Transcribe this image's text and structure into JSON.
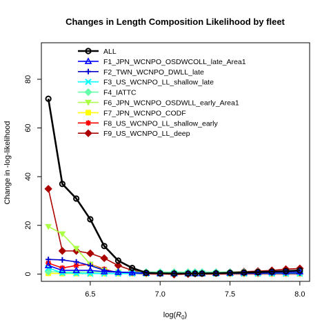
{
  "chart_data": {
    "type": "line",
    "title": "Changes in Length Composition Likelihood by fleet",
    "xlabel_prefix": "log(",
    "xlabel_var": "R",
    "xlabel_sub": "0",
    "xlabel_suffix": ")",
    "ylabel": "Change in -log-likelihood",
    "xlim": [
      6.15,
      8.07
    ],
    "ylim": [
      -3,
      95
    ],
    "x_ticks": [
      6.5,
      7.0,
      7.5,
      8.0
    ],
    "x_tick_labels": [
      "6.5",
      "7.0",
      "7.5",
      "8.0"
    ],
    "y_ticks": [
      0,
      20,
      40,
      60,
      80
    ],
    "y_tick_labels": [
      "0",
      "20",
      "40",
      "60",
      "80"
    ],
    "grid": false,
    "legend_position": "top-center",
    "x": [
      6.2,
      6.3,
      6.4,
      6.5,
      6.6,
      6.7,
      6.8,
      6.9,
      7.0,
      7.1,
      7.2,
      7.25,
      7.3,
      7.4,
      7.5,
      7.6,
      7.7,
      7.8,
      7.9,
      8.0
    ],
    "series": [
      {
        "name": "ALL",
        "color": "#000000",
        "marker": "circle-open",
        "lw": 2.6,
        "values": [
          72,
          37,
          31,
          22.5,
          11.5,
          5.5,
          2.5,
          0.5,
          0.3,
          0.2,
          0.2,
          0.2,
          0.2,
          0.3,
          0.5,
          0.6,
          0.8,
          1.0,
          1.2,
          1.5
        ]
      },
      {
        "name": "F1_JPN_WCNPO_OSDWCOLL_late_Area1",
        "color": "#0000ff",
        "marker": "triangle",
        "lw": 1.6,
        "values": [
          3.5,
          1.5,
          1.5,
          1.5,
          1.0,
          0.8,
          0.6,
          0.4,
          0.3,
          0.3,
          0.3,
          0.3,
          0.3,
          0.4,
          0.5,
          0.6,
          0.7,
          0.8,
          0.9,
          1.0
        ]
      },
      {
        "name": "F2_TWN_WCNPO_DWLL_late",
        "color": "#0000cc",
        "marker": "plus",
        "lw": 1.6,
        "values": [
          6.0,
          5.8,
          5.0,
          3.5,
          1.5,
          0.8,
          0.5,
          0.3,
          0.3,
          0.2,
          0.2,
          0.2,
          0.2,
          0.2,
          0.3,
          0.3,
          0.3,
          0.4,
          0.4,
          0.4
        ]
      },
      {
        "name": "F3_US_WCNPO_LL_shallow_late",
        "color": "#00ffff",
        "marker": "x",
        "lw": 1.6,
        "values": [
          2.5,
          0.5,
          0.3,
          0.2,
          0.2,
          0.2,
          0.2,
          0.2,
          0.2,
          0.2,
          0.2,
          0.2,
          0.2,
          0.2,
          0.2,
          0.2,
          0.2,
          0.2,
          0.2,
          0.2
        ]
      },
      {
        "name": "F4_IATTC",
        "color": "#66ffaa",
        "marker": "diamond",
        "lw": 1.6,
        "values": [
          1.0,
          0.8,
          0.8,
          0.8,
          0.8,
          0.8,
          0.8,
          0.8,
          0.8,
          0.8,
          0.8,
          0.8,
          0.8,
          0.8,
          0.8,
          0.8,
          0.8,
          0.8,
          0.8,
          0.8
        ]
      },
      {
        "name": "F6_JPN_WCNPO_OSDWLL_early_Area1",
        "color": "#aaff44",
        "marker": "triangle-down",
        "lw": 1.6,
        "values": [
          19.5,
          16.5,
          10.5,
          4.0,
          1.5,
          0.8,
          0.5,
          0.4,
          0.3,
          0.3,
          0.3,
          0.3,
          0.3,
          0.3,
          0.3,
          0.3,
          0.3,
          0.3,
          0.3,
          0.3
        ]
      },
      {
        "name": "F7_JPN_WCNPO_CODF",
        "color": "#ffff00",
        "marker": "square",
        "lw": 1.6,
        "values": [
          0.3,
          0.2,
          0.2,
          0.2,
          0.2,
          0.2,
          0.2,
          0.2,
          0.2,
          0.2,
          0.2,
          0.2,
          0.2,
          0.2,
          0.2,
          0.2,
          0.2,
          0.2,
          0.2,
          0.2
        ]
      },
      {
        "name": "F8_US_WCNPO_LL_shallow_early",
        "color": "#ff0000",
        "marker": "star",
        "lw": 1.6,
        "values": [
          4.5,
          2.5,
          3.5,
          4.0,
          2.0,
          0.5,
          0.2,
          0.0,
          0.0,
          0.0,
          0.0,
          0.0,
          0.0,
          0.0,
          0.0,
          0.0,
          0.0,
          0.0,
          0.0,
          0.0
        ]
      },
      {
        "name": "F9_US_WCNPO_LL_deep",
        "color": "#aa0000",
        "marker": "diamond-filled",
        "lw": 1.6,
        "values": [
          35,
          9.5,
          9.5,
          8.5,
          6.5,
          3.5,
          1.5,
          0.5,
          0.3,
          -0.2,
          0.0,
          0.2,
          0.3,
          0.5,
          0.8,
          1.0,
          1.2,
          1.5,
          2.0,
          2.3
        ]
      }
    ]
  }
}
